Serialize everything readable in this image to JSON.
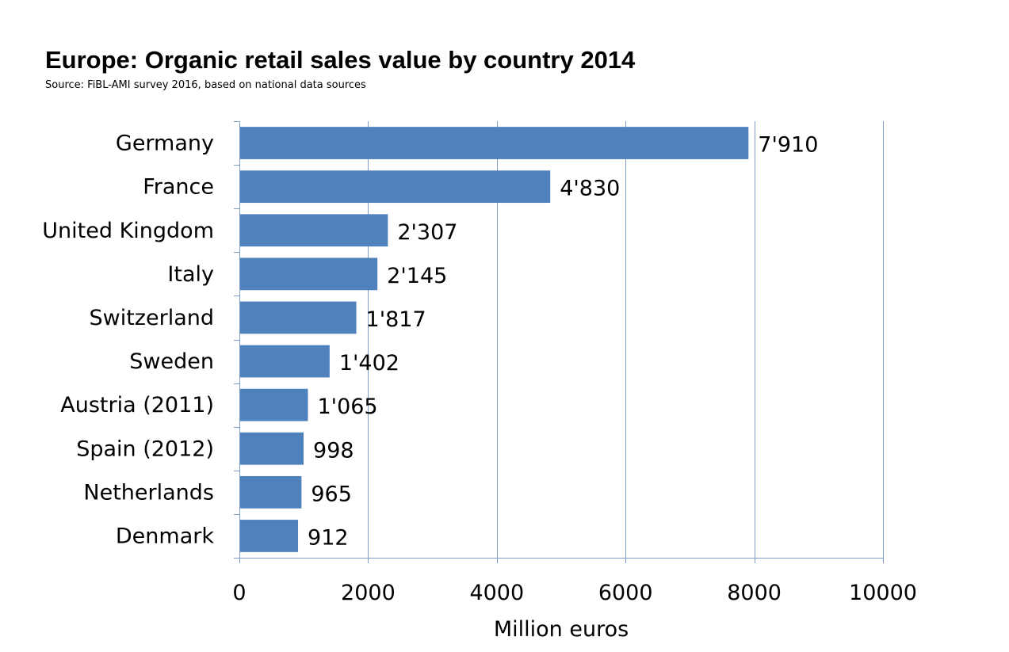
{
  "chart_data": {
    "type": "bar",
    "orientation": "horizontal",
    "title": "Europe: Organic retail sales value by country 2014",
    "subtitle": "Source: FiBL-AMI survey 2016, based on national data sources",
    "categories": [
      "Germany",
      "France",
      "United Kingdom",
      "Italy",
      "Switzerland",
      "Sweden",
      "Austria (2011)",
      "Spain (2012)",
      "Netherlands",
      "Denmark"
    ],
    "values": [
      7910,
      4830,
      2307,
      2145,
      1817,
      1402,
      1065,
      998,
      965,
      912
    ],
    "value_labels": [
      "7'910",
      "4'830",
      "2'307",
      "2'145",
      "1'817",
      "1'402",
      "1'065",
      "998",
      "965",
      "912"
    ],
    "xlabel": "Million euros",
    "ylabel": "",
    "xlim": [
      0,
      10000
    ],
    "x_ticks": [
      0,
      2000,
      4000,
      6000,
      8000,
      10000
    ],
    "x_tick_labels": [
      "0",
      "2000",
      "4000",
      "6000",
      "8000",
      "10000"
    ],
    "grid": "vertical",
    "legend": "none",
    "colors": {
      "bar": "#4f81bd",
      "grid": "#7f9fc8",
      "axis": "#7f9fc8"
    }
  }
}
